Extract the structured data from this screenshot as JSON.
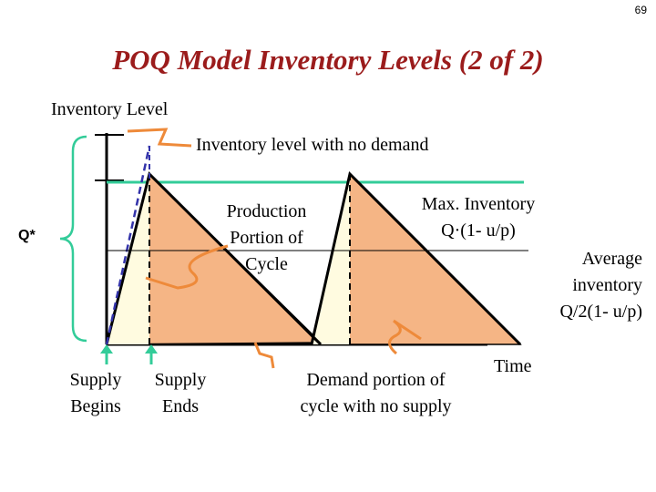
{
  "page_number": "69",
  "title": "POQ Model Inventory Levels (2 of 2)",
  "labels": {
    "y_axis": "Inventory Level",
    "no_demand": "Inventory level with no demand",
    "q_star": "Q*",
    "production_portion": [
      "Production",
      "Portion of",
      "Cycle"
    ],
    "max_inventory": [
      "Max. Inventory",
      "Q·(1- u/p)"
    ],
    "average_inventory": [
      "Average",
      "inventory",
      "Q/2(1- u/p)"
    ],
    "supply_begins": [
      "Supply",
      "Begins"
    ],
    "supply_ends": [
      "Supply",
      "Ends"
    ],
    "demand_portion": [
      "Demand portion of",
      "cycle with no supply"
    ],
    "time": "Time"
  },
  "colors": {
    "title": "#9b1c1c",
    "triangle_fill": "#f5b585",
    "production_fill": "#fffbe0",
    "no_demand_line": "#33cc99",
    "arrows": "#ee8a3a",
    "dashed_line": "#3333aa"
  }
}
